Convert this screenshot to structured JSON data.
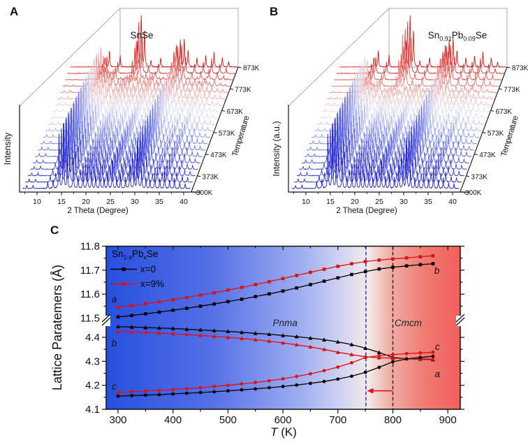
{
  "figure_labels": {
    "A": "A",
    "B": "B",
    "C": "C"
  },
  "chart_data": [
    {
      "panel": "A",
      "type": "line",
      "subtype": "3d-waterfall-xrd",
      "title": "SnSe",
      "xlabel": "2 Theta (Degree)",
      "ylabel": "Intensity",
      "zlabel": "Temperature",
      "x_ticks": [
        10,
        15,
        20,
        25,
        30,
        35,
        40
      ],
      "x_range": [
        7.1,
        41.4
      ],
      "z_ticks": [
        300,
        373,
        473,
        573,
        673,
        773,
        873
      ],
      "z_tick_labels": [
        "300K",
        "373K",
        "473K",
        "573K",
        "673K",
        "773K",
        "873K"
      ],
      "n_traces": 20,
      "temperature_range_K": [
        300,
        873
      ],
      "phase_transition_K": 800,
      "trace_color_low": "#1818CE",
      "trace_color_mid": "#E8E8F6",
      "trace_color_high": "#D61212",
      "peaks_pnma_2theta_intensity": [
        [
          7.9,
          0.05
        ],
        [
          9.2,
          0.05
        ],
        [
          12.2,
          0.1
        ],
        [
          13.3,
          0.14
        ],
        [
          14.5,
          0.85
        ],
        [
          15.4,
          1.0
        ],
        [
          16.2,
          0.5
        ],
        [
          17.4,
          0.48
        ],
        [
          18.4,
          0.2
        ],
        [
          19.4,
          0.26
        ],
        [
          20.3,
          0.34
        ],
        [
          21.2,
          0.28
        ],
        [
          22.0,
          0.22
        ],
        [
          22.9,
          0.28
        ],
        [
          23.7,
          0.17
        ],
        [
          24.5,
          0.24
        ],
        [
          25.4,
          0.4
        ],
        [
          26.3,
          0.18
        ],
        [
          27.1,
          0.22
        ],
        [
          28.1,
          0.16
        ],
        [
          29.0,
          0.42
        ],
        [
          29.9,
          0.32
        ],
        [
          30.6,
          0.8
        ],
        [
          31.4,
          0.28
        ],
        [
          32.3,
          0.16
        ],
        [
          33.1,
          0.13
        ],
        [
          34.1,
          0.22
        ],
        [
          35.1,
          0.16
        ],
        [
          36.1,
          0.26
        ],
        [
          37.1,
          0.13
        ],
        [
          38.1,
          0.16
        ],
        [
          39.2,
          0.09
        ],
        [
          40.3,
          0.07
        ]
      ],
      "peaks_cmcm_2theta_intensity": [
        [
          14.2,
          0.18
        ],
        [
          15.1,
          0.32
        ],
        [
          17.3,
          0.22
        ],
        [
          20.8,
          0.5
        ],
        [
          21.6,
          1.0
        ],
        [
          22.3,
          0.7
        ],
        [
          23.6,
          0.12
        ],
        [
          25.6,
          0.18
        ],
        [
          28.8,
          0.42
        ],
        [
          29.6,
          0.5
        ],
        [
          30.4,
          0.55
        ],
        [
          31.2,
          0.32
        ],
        [
          33.0,
          0.18
        ],
        [
          34.8,
          0.22
        ],
        [
          36.5,
          0.28
        ],
        [
          38.2,
          0.18
        ],
        [
          39.5,
          0.1
        ]
      ]
    },
    {
      "panel": "B",
      "type": "line",
      "subtype": "3d-waterfall-xrd",
      "title": "Sn0.91Pb0.09Se",
      "title_parts": [
        {
          "t": "Sn"
        },
        {
          "t": "0.91",
          "sub": true
        },
        {
          "t": "Pb"
        },
        {
          "t": "0.09",
          "sub": true
        },
        {
          "t": "Se"
        }
      ],
      "xlabel": "2 Theta (Degree)",
      "ylabel": "Intensity (a.u.)",
      "zlabel": "Temperature",
      "x_ticks": [
        10,
        15,
        20,
        25,
        30,
        35,
        40
      ],
      "x_range": [
        7.1,
        41.4
      ],
      "z_ticks": [
        300,
        373,
        473,
        573,
        673,
        773,
        873
      ],
      "z_tick_labels": [
        "300K",
        "373K",
        "473K",
        "573K",
        "673K",
        "773K",
        "873K"
      ],
      "n_traces": 20,
      "temperature_range_K": [
        300,
        873
      ],
      "phase_transition_K": 750,
      "trace_color_low": "#1818CE",
      "trace_color_mid": "#E8E8F6",
      "trace_color_high": "#D61212",
      "peaks_pnma_2theta_intensity": [
        [
          7.9,
          0.05
        ],
        [
          9.2,
          0.05
        ],
        [
          12.2,
          0.1
        ],
        [
          13.3,
          0.14
        ],
        [
          14.5,
          0.85
        ],
        [
          15.4,
          1.0
        ],
        [
          16.2,
          0.5
        ],
        [
          17.4,
          0.48
        ],
        [
          18.4,
          0.2
        ],
        [
          19.4,
          0.26
        ],
        [
          20.3,
          0.34
        ],
        [
          21.2,
          0.28
        ],
        [
          22.0,
          0.22
        ],
        [
          22.9,
          0.28
        ],
        [
          23.7,
          0.17
        ],
        [
          24.5,
          0.24
        ],
        [
          25.4,
          0.4
        ],
        [
          26.3,
          0.18
        ],
        [
          27.1,
          0.22
        ],
        [
          28.1,
          0.16
        ],
        [
          29.0,
          0.42
        ],
        [
          29.9,
          0.32
        ],
        [
          30.6,
          0.8
        ],
        [
          31.4,
          0.28
        ],
        [
          32.3,
          0.16
        ],
        [
          33.1,
          0.13
        ],
        [
          34.1,
          0.22
        ],
        [
          35.1,
          0.16
        ],
        [
          36.1,
          0.26
        ],
        [
          37.1,
          0.13
        ],
        [
          38.1,
          0.16
        ],
        [
          39.2,
          0.09
        ],
        [
          40.3,
          0.07
        ]
      ],
      "peaks_cmcm_2theta_intensity": [
        [
          14.2,
          0.18
        ],
        [
          15.1,
          0.32
        ],
        [
          17.3,
          0.22
        ],
        [
          20.8,
          0.5
        ],
        [
          21.6,
          1.0
        ],
        [
          22.3,
          0.7
        ],
        [
          23.6,
          0.12
        ],
        [
          25.6,
          0.18
        ],
        [
          28.8,
          0.42
        ],
        [
          29.6,
          0.5
        ],
        [
          30.4,
          0.55
        ],
        [
          31.2,
          0.32
        ],
        [
          33.0,
          0.18
        ],
        [
          34.8,
          0.22
        ],
        [
          36.5,
          0.28
        ],
        [
          38.2,
          0.18
        ],
        [
          39.5,
          0.1
        ]
      ]
    },
    {
      "panel": "C",
      "type": "line",
      "xlabel": "T (K)",
      "xlabel_parts": [
        {
          "t": "T",
          "italic": true
        },
        {
          "t": " (K)"
        }
      ],
      "ylabel": "Lattice Paratemers (Å)",
      "x_ticks": [
        300,
        400,
        500,
        600,
        700,
        800,
        900
      ],
      "x_minor_ticks": [
        350,
        450,
        550,
        650,
        750,
        850
      ],
      "xlim": [
        280,
        925
      ],
      "y_ticks_upper": [
        11.8,
        11.7,
        11.6,
        11.5
      ],
      "y_minor_ticks_upper": [
        11.75,
        11.65,
        11.55
      ],
      "ylim_upper": [
        11.5,
        11.8
      ],
      "y_ticks_lower": [
        4.4,
        4.3,
        4.2,
        4.1
      ],
      "y_minor_ticks_lower": [
        4.35,
        4.25,
        4.15
      ],
      "ylim_lower": [
        4.1,
        4.45
      ],
      "axis_break": true,
      "legend": {
        "title": "Sn1-xPbxSe",
        "title_parts": [
          {
            "t": "Sn"
          },
          {
            "t": "1-x",
            "sub": true
          },
          {
            "t": "Pb"
          },
          {
            "t": "x",
            "sub": true
          },
          {
            "t": "Se"
          }
        ],
        "entries": [
          {
            "label": "x=0",
            "color": "#000000",
            "marker": "square"
          },
          {
            "label": "x=9%",
            "color": "#DD1111",
            "marker": "square"
          }
        ]
      },
      "phase_regions": [
        {
          "label": "Pnma",
          "T": 604
        },
        {
          "label": "Cmcm",
          "T": 828
        }
      ],
      "dashed_lines": [
        {
          "T": 751,
          "color": "#2020E8"
        },
        {
          "T": 800,
          "color": "#222222"
        }
      ],
      "arrow": {
        "from_T": 799,
        "to_T": 753,
        "at_value": 4.177,
        "color": "#E01010"
      },
      "curve_labels_left": [
        {
          "t": "a",
          "T": 293,
          "v": 11.577
        },
        {
          "t": "b",
          "T": 293,
          "v": 4.374
        },
        {
          "t": "c",
          "T": 293,
          "v": 4.193
        }
      ],
      "curve_labels_right": [
        {
          "t": "b",
          "T": 880,
          "v": 11.697
        },
        {
          "t": "c",
          "T": 881,
          "v": 4.359
        },
        {
          "t": "a",
          "T": 881,
          "v": 4.246
        }
      ],
      "background_gradient": [
        "#2750DF",
        "#5570E6",
        "#9FAEF0",
        "#D8D8F0",
        "#F3EBEA",
        "#F0AFA8",
        "#F07A72",
        "#F25F5B"
      ],
      "T": [
        300,
        325,
        350,
        375,
        400,
        425,
        450,
        475,
        500,
        525,
        550,
        575,
        600,
        625,
        650,
        675,
        700,
        725,
        750,
        775,
        800,
        825,
        850,
        873
      ],
      "series": [
        {
          "name": "a (x=0)",
          "axis": "a",
          "composition": "x=0",
          "color": "#000000",
          "marker": "square",
          "values": [
            11.505,
            11.511,
            11.518,
            11.525,
            11.533,
            11.541,
            11.55,
            11.559,
            11.569,
            11.579,
            11.59,
            11.601,
            11.613,
            11.626,
            11.64,
            11.654,
            11.668,
            11.682,
            11.694,
            11.705,
            11.712,
            11.718,
            11.723,
            11.727
          ]
        },
        {
          "name": "a (x=9%)",
          "axis": "a",
          "composition": "x=9%",
          "color": "#DD1111",
          "marker": "square",
          "values": [
            11.545,
            11.552,
            11.56,
            11.568,
            11.577,
            11.586,
            11.596,
            11.606,
            11.617,
            11.628,
            11.64,
            11.652,
            11.665,
            11.678,
            11.691,
            11.704,
            11.716,
            11.727,
            11.736,
            11.742,
            11.747,
            11.751,
            11.756,
            11.76
          ]
        },
        {
          "name": "b (x=0)",
          "axis": "b",
          "composition": "x=0",
          "color": "#000000",
          "marker": "triangle",
          "values": [
            4.445,
            4.443,
            4.441,
            4.439,
            4.437,
            4.434,
            4.431,
            4.428,
            4.425,
            4.421,
            4.417,
            4.413,
            4.408,
            4.403,
            4.397,
            4.39,
            4.381,
            4.37,
            4.355,
            4.337,
            4.316,
            4.311,
            4.309,
            4.307
          ]
        },
        {
          "name": "b (x=9%)",
          "axis": "b",
          "composition": "x=9%",
          "color": "#DD1111",
          "marker": "triangle",
          "values": [
            4.425,
            4.423,
            4.421,
            4.418,
            4.415,
            4.412,
            4.408,
            4.404,
            4.4,
            4.395,
            4.39,
            4.384,
            4.377,
            4.369,
            4.36,
            4.35,
            4.338,
            4.328,
            4.319,
            4.315,
            4.313,
            4.311,
            4.31,
            4.309
          ]
        },
        {
          "name": "c (x=0)",
          "axis": "c",
          "composition": "x=0",
          "color": "#000000",
          "marker": "circle",
          "values": [
            4.155,
            4.157,
            4.159,
            4.161,
            4.164,
            4.167,
            4.17,
            4.173,
            4.177,
            4.181,
            4.185,
            4.19,
            4.195,
            4.201,
            4.208,
            4.216,
            4.226,
            4.238,
            4.254,
            4.275,
            4.298,
            4.31,
            4.316,
            4.321
          ]
        },
        {
          "name": "c (x=9%)",
          "axis": "c",
          "composition": "x=9%",
          "color": "#DD1111",
          "marker": "circle",
          "values": [
            4.17,
            4.173,
            4.176,
            4.179,
            4.182,
            4.186,
            4.19,
            4.195,
            4.2,
            4.206,
            4.212,
            4.219,
            4.227,
            4.237,
            4.248,
            4.261,
            4.276,
            4.294,
            4.316,
            4.323,
            4.328,
            4.332,
            4.335,
            4.338
          ]
        }
      ]
    }
  ]
}
